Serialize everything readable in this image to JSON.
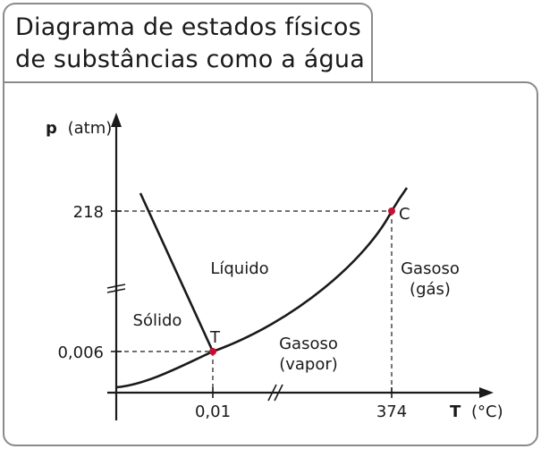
{
  "title": {
    "line1": "Diagrama de estados físicos",
    "line2": "de substâncias como a água"
  },
  "axes": {
    "y_symbol": "p",
    "y_unit": "(atm)",
    "x_symbol": "T",
    "x_unit": "(°C)"
  },
  "y_ticks": [
    "218",
    "0,006"
  ],
  "x_ticks": [
    "0,01",
    "374"
  ],
  "points": {
    "triple": "T",
    "critical": "C"
  },
  "regions": {
    "solid": "Sólido",
    "liquid": "Líquido",
    "vapor_line1": "Gasoso",
    "vapor_line2": "(vapor)",
    "gas_line1": "Gasoso",
    "gas_line2": "(gás)"
  },
  "colors": {
    "point": "#c8102e",
    "line": "#1a1a1a",
    "border": "#8a8a8a"
  }
}
